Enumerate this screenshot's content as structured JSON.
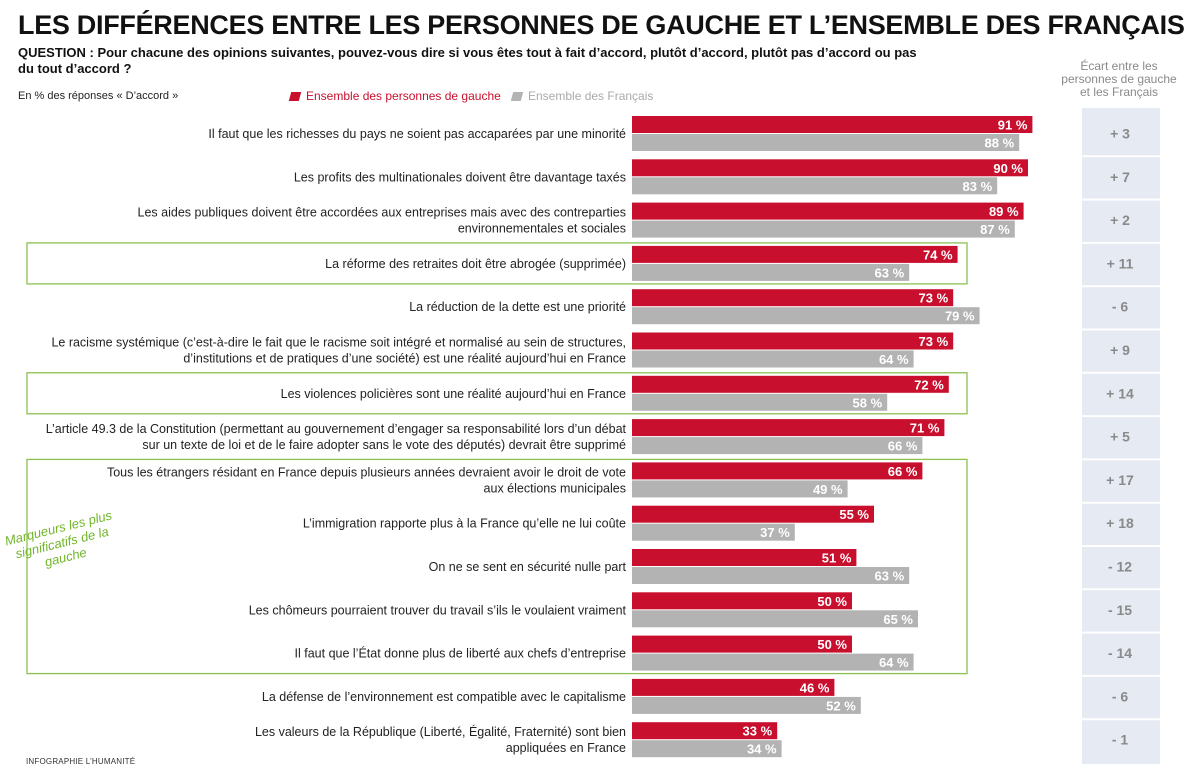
{
  "title": "LES DIFFÉRENCES ENTRE LES PERSONNES DE GAUCHE ET L’ENSEMBLE DES FRANÇAIS",
  "question": "QUESTION : Pour chacune des opinions suivantes, pouvez-vous dire si vous êtes tout à fait d’accord, plutôt d’accord, plutôt pas d’accord ou pas du tout d’accord ?",
  "unit_note": "En % des réponses « D’accord »",
  "ecart_header": "Écart entre les personnes de gauche et les Français",
  "marker_label": "Marqueurs les plus significatifs de la gauche",
  "source": "INFOGRAPHIE L’HUMANITÉ",
  "colors": {
    "gauche": "#c8102e",
    "francais": "#b3b3b3",
    "highlight": "#8cc152",
    "ecart_bg": "#e6eaf3",
    "ecart_text": "#8a8a8a"
  },
  "chart_data": {
    "type": "bar",
    "orientation": "horizontal",
    "unit": "%",
    "legend": [
      "Ensemble des personnes de gauche",
      "Ensemble des Français"
    ],
    "categories": [
      [
        "Il faut que les richesses du pays ne soient pas accaparées par une minorité"
      ],
      [
        "Les profits des multinationales doivent être davantage taxés"
      ],
      [
        "Les aides publiques doivent être accordées aux entreprises mais avec des contreparties",
        "environnementales et sociales"
      ],
      [
        "La réforme des retraites doit être abrogée (supprimée)"
      ],
      [
        "La réduction de la dette est une priorité"
      ],
      [
        "Le racisme systémique (c’est-à-dire le fait que le racisme soit intégré et normalisé au sein de structures,",
        "d’institutions et de pratiques d’une société) est une réalité aujourd’hui en France"
      ],
      [
        "Les violences policières sont une réalité aujourd’hui en France"
      ],
      [
        "L’article 49.3 de la Constitution (permettant au gouvernement d’engager sa responsabilité lors d’un débat",
        "sur un texte de loi et de le faire adopter sans le vote des députés) devrait être supprimé"
      ],
      [
        "Tous les étrangers résidant en France depuis plusieurs années devraient avoir le droit de vote",
        "aux élections municipales"
      ],
      [
        "L’immigration rapporte plus à la France qu’elle ne lui coûte"
      ],
      [
        "On ne se sent en sécurité nulle part"
      ],
      [
        "Les chômeurs pourraient trouver du travail s’ils le voulaient vraiment"
      ],
      [
        "Il faut que l’État donne plus de liberté aux chefs d’entreprise"
      ],
      [
        "La défense de l’environnement est compatible avec le capitalisme"
      ],
      [
        "Les valeurs de la République (Liberté, Égalité, Fraternité) sont bien",
        "appliquées en France"
      ]
    ],
    "series": [
      {
        "name": "Ensemble des personnes de gauche",
        "values": [
          91,
          90,
          89,
          74,
          73,
          73,
          72,
          71,
          66,
          55,
          51,
          50,
          50,
          46,
          33
        ]
      },
      {
        "name": "Ensemble des Français",
        "values": [
          88,
          83,
          87,
          63,
          79,
          64,
          58,
          66,
          49,
          37,
          63,
          65,
          64,
          52,
          34
        ]
      }
    ],
    "ecart": [
      "+ 3",
      "+ 7",
      "+ 2",
      "+ 11",
      "- 6",
      "+ 9",
      "+ 14",
      "+ 5",
      "+ 17",
      "+ 18",
      "- 12",
      "- 15",
      "- 14",
      "- 6",
      "- 1"
    ],
    "highlighted_groups": [
      [
        3
      ],
      [
        6
      ],
      [
        8,
        9,
        10,
        11,
        12
      ]
    ]
  }
}
